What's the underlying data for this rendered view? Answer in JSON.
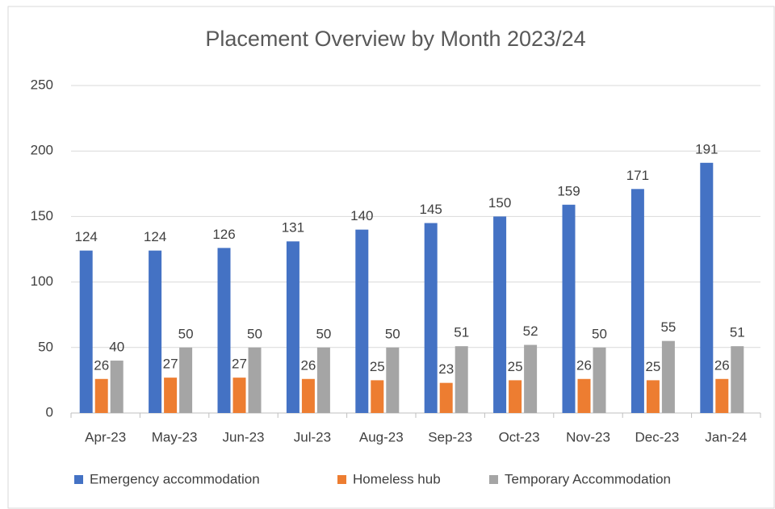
{
  "chart_data": {
    "type": "bar",
    "title": "Placement Overview by Month 2023/24",
    "categories": [
      "Apr-23",
      "May-23",
      "Jun-23",
      "Jul-23",
      "Aug-23",
      "Sep-23",
      "Oct-23",
      "Nov-23",
      "Dec-23",
      "Jan-24"
    ],
    "series": [
      {
        "name": "Emergency accommodation",
        "color": "#4472c4",
        "values": [
          124,
          124,
          126,
          131,
          140,
          145,
          150,
          159,
          171,
          191
        ]
      },
      {
        "name": "Homeless hub",
        "color": "#ed7d31",
        "values": [
          26,
          27,
          27,
          26,
          25,
          23,
          25,
          26,
          25,
          26
        ]
      },
      {
        "name": "Temporary Accommodation",
        "color": "#a5a5a5",
        "values": [
          40,
          50,
          50,
          50,
          50,
          51,
          52,
          50,
          55,
          51
        ]
      }
    ],
    "ylim": [
      0,
      250
    ],
    "yticks": [
      0,
      50,
      100,
      150,
      200,
      250
    ],
    "grid": true,
    "legend": "bottom"
  }
}
